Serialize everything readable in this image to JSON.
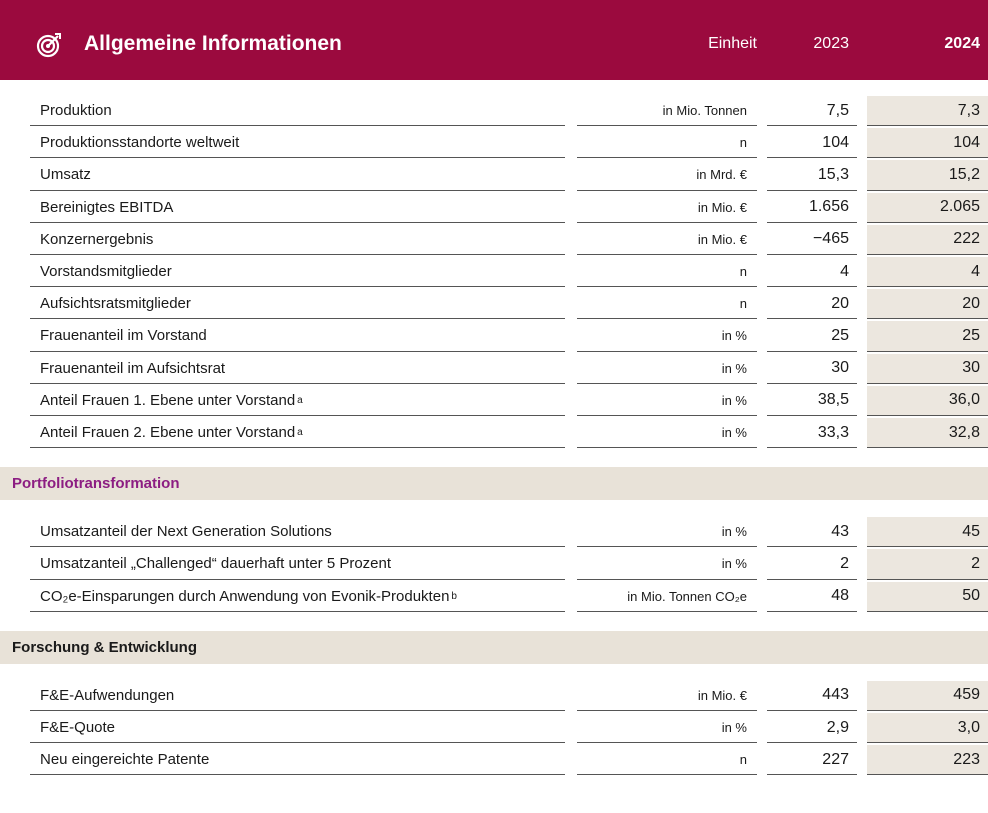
{
  "header": {
    "title": "Allgemeine Informationen",
    "unit": "Einheit",
    "year1": "2023",
    "year2": "2024"
  },
  "sections": [
    {
      "rows": [
        {
          "label": "Produktion",
          "unit": "in Mio. Tonnen",
          "v1": "7,5",
          "v2": "7,3"
        },
        {
          "label": "Produktionsstandorte weltweit",
          "unit": "n",
          "v1": "104",
          "v2": "104"
        },
        {
          "label": "Umsatz",
          "unit": "in Mrd. €",
          "v1": "15,3",
          "v2": "15,2"
        },
        {
          "label": "Bereinigtes EBITDA",
          "unit": "in Mio. €",
          "v1": "1.656",
          "v2": "2.065"
        },
        {
          "label": "Konzernergebnis",
          "unit": "in Mio. €",
          "v1": "−465",
          "v2": "222"
        },
        {
          "label": "Vorstandsmitglieder",
          "unit": "n",
          "v1": "4",
          "v2": "4"
        },
        {
          "label": "Aufsichtsratsmitglieder",
          "unit": "n",
          "v1": "20",
          "v2": "20"
        },
        {
          "label": "Frauenanteil im Vorstand",
          "unit": "in %",
          "v1": "25",
          "v2": "25"
        },
        {
          "label": "Frauenanteil im Aufsichtsrat",
          "unit": "in %",
          "v1": "30",
          "v2": "30"
        },
        {
          "label": "Anteil Frauen 1. Ebene unter Vorstand",
          "note": "a",
          "unit": "in %",
          "v1": "38,5",
          "v2": "36,0"
        },
        {
          "label": "Anteil Frauen 2. Ebene unter Vorstand",
          "note": "a",
          "unit": "in %",
          "v1": "33,3",
          "v2": "32,8"
        }
      ]
    },
    {
      "title": "Portfoliotransformation",
      "rows": [
        {
          "label": "Umsatzanteil der Next Generation Solutions",
          "unit": "in %",
          "v1": "43",
          "v2": "45"
        },
        {
          "label": "Umsatzanteil „Challenged“ dauerhaft unter 5 Prozent",
          "unit": "in %",
          "v1": "2",
          "v2": "2"
        },
        {
          "label": "CO₂e-Einsparungen durch Anwendung von Evonik-Produkten",
          "note": "b",
          "unit": "in Mio. Tonnen CO₂e",
          "v1": "48",
          "v2": "50"
        }
      ]
    },
    {
      "title": "Forschung & Entwicklung",
      "rows": [
        {
          "label": "F&E-Aufwendungen",
          "unit": "in Mio. €",
          "v1": "443",
          "v2": "459"
        },
        {
          "label": "F&E-Quote",
          "unit": "in %",
          "v1": "2,9",
          "v2": "3,0"
        },
        {
          "label": "Neu eingereichte Patente",
          "unit": "n",
          "v1": "227",
          "v2": "223"
        }
      ]
    }
  ]
}
